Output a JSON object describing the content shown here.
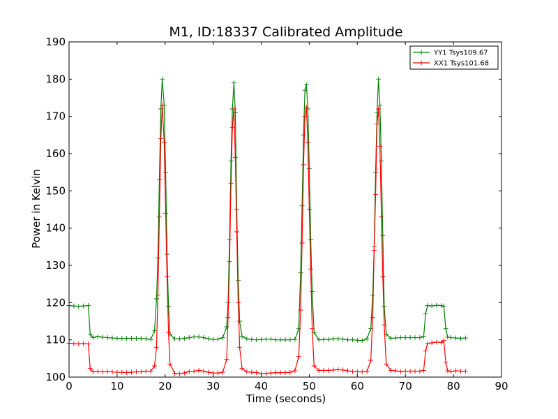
{
  "chart_data": {
    "type": "line",
    "title": "M1, ID:18337 Calibrated Amplitude",
    "xlabel": "Time (seconds)",
    "ylabel": "Power in Kelvin",
    "xlim": [
      0,
      90
    ],
    "ylim": [
      100,
      190
    ],
    "x_ticks": [
      "0",
      "10",
      "20",
      "30",
      "40",
      "50",
      "60",
      "70",
      "80",
      "90"
    ],
    "y_ticks": [
      "100",
      "110",
      "120",
      "130",
      "140",
      "150",
      "160",
      "170",
      "180",
      "190"
    ],
    "grid": false,
    "legend_position": "top-right",
    "marker": "+",
    "series": [
      {
        "name": "YY1 Tsys109.67",
        "color": "#008000",
        "points": [
          [
            0,
            119.2
          ],
          [
            1,
            119.1
          ],
          [
            2,
            119.0
          ],
          [
            3,
            119.1
          ],
          [
            4,
            119.2
          ],
          [
            4.4,
            111.5
          ],
          [
            5,
            110.6
          ],
          [
            6,
            110.9
          ],
          [
            7,
            110.7
          ],
          [
            8,
            110.6
          ],
          [
            9,
            110.5
          ],
          [
            10,
            110.4
          ],
          [
            11,
            110.4
          ],
          [
            12,
            110.4
          ],
          [
            13,
            110.4
          ],
          [
            14,
            110.4
          ],
          [
            15,
            110.4
          ],
          [
            16,
            110.3
          ],
          [
            17,
            110.1
          ],
          [
            17.8,
            112.5
          ],
          [
            18.2,
            121
          ],
          [
            18.5,
            132
          ],
          [
            18.8,
            153
          ],
          [
            19.1,
            172
          ],
          [
            19.4,
            180
          ],
          [
            19.8,
            173
          ],
          [
            20.1,
            155
          ],
          [
            20.4,
            133
          ],
          [
            20.7,
            119
          ],
          [
            21,
            111.5
          ],
          [
            22,
            110.3
          ],
          [
            23,
            110.3
          ],
          [
            24,
            110.4
          ],
          [
            25,
            110.6
          ],
          [
            26,
            110.8
          ],
          [
            27,
            110.8
          ],
          [
            28,
            110.6
          ],
          [
            29,
            110.3
          ],
          [
            30,
            110.1
          ],
          [
            31,
            110.2
          ],
          [
            32,
            110.6
          ],
          [
            32.8,
            113.5
          ],
          [
            33.1,
            120
          ],
          [
            33.4,
            137
          ],
          [
            33.7,
            158
          ],
          [
            34.0,
            172
          ],
          [
            34.3,
            179
          ],
          [
            34.6,
            171
          ],
          [
            34.9,
            145
          ],
          [
            35.2,
            126
          ],
          [
            35.5,
            115
          ],
          [
            36,
            110.9
          ],
          [
            37,
            110.3
          ],
          [
            38,
            110.1
          ],
          [
            39,
            110.0
          ],
          [
            40,
            110.1
          ],
          [
            41,
            110.2
          ],
          [
            42,
            110.2
          ],
          [
            43,
            110.0
          ],
          [
            44,
            110.0
          ],
          [
            45,
            110.0
          ],
          [
            46,
            110.0
          ],
          [
            47,
            110.1
          ],
          [
            47.8,
            113
          ],
          [
            48.2,
            128
          ],
          [
            48.5,
            146
          ],
          [
            48.8,
            165
          ],
          [
            49.1,
            177
          ],
          [
            49.4,
            178.5
          ],
          [
            49.7,
            172
          ],
          [
            50.0,
            156
          ],
          [
            50.3,
            137
          ],
          [
            50.6,
            123
          ],
          [
            51,
            112
          ],
          [
            52,
            110.0
          ],
          [
            53,
            110.1
          ],
          [
            54,
            110.1
          ],
          [
            55,
            110.3
          ],
          [
            56,
            110.3
          ],
          [
            57,
            110.2
          ],
          [
            58,
            110.0
          ],
          [
            59,
            110.0
          ],
          [
            60,
            109.9
          ],
          [
            61,
            109.8
          ],
          [
            62,
            110.3
          ],
          [
            62.8,
            113
          ],
          [
            63.2,
            122
          ],
          [
            63.5,
            135
          ],
          [
            63.8,
            155
          ],
          [
            64.1,
            171
          ],
          [
            64.4,
            180
          ],
          [
            64.7,
            173
          ],
          [
            65.0,
            158
          ],
          [
            65.3,
            138
          ],
          [
            65.6,
            119
          ],
          [
            66,
            111.5
          ],
          [
            67,
            110.4
          ],
          [
            68,
            110.5
          ],
          [
            69,
            110.6
          ],
          [
            70,
            110.6
          ],
          [
            71,
            110.6
          ],
          [
            72,
            110.6
          ],
          [
            73,
            110.6
          ],
          [
            73.8,
            110.9
          ],
          [
            74.2,
            117
          ],
          [
            74.6,
            119.2
          ],
          [
            75.5,
            119.1
          ],
          [
            76.5,
            119.3
          ],
          [
            77.5,
            119.2
          ],
          [
            78.0,
            119.0
          ],
          [
            78.4,
            113
          ],
          [
            78.8,
            110.7
          ],
          [
            79.5,
            110.6
          ],
          [
            80.5,
            110.5
          ],
          [
            81.5,
            110.4
          ],
          [
            82.5,
            110.5
          ]
        ]
      },
      {
        "name": "XX1 Tsys101.68",
        "color": "#ff0000",
        "points": [
          [
            0,
            109.1
          ],
          [
            1,
            109.0
          ],
          [
            2,
            108.9
          ],
          [
            3,
            109.0
          ],
          [
            4,
            108.9
          ],
          [
            4.4,
            102.3
          ],
          [
            5,
            101.4
          ],
          [
            6,
            101.5
          ],
          [
            7,
            101.4
          ],
          [
            8,
            101.5
          ],
          [
            9,
            101.4
          ],
          [
            10,
            101.3
          ],
          [
            11,
            101.3
          ],
          [
            12,
            101.2
          ],
          [
            13,
            101.3
          ],
          [
            14,
            101.4
          ],
          [
            15,
            101.4
          ],
          [
            16,
            101.6
          ],
          [
            17,
            101.6
          ],
          [
            17.8,
            103
          ],
          [
            18.2,
            108
          ],
          [
            18.5,
            122
          ],
          [
            18.8,
            143
          ],
          [
            19.1,
            164
          ],
          [
            19.4,
            173
          ],
          [
            19.8,
            163
          ],
          [
            20.1,
            144
          ],
          [
            20.4,
            127
          ],
          [
            20.7,
            112
          ],
          [
            21,
            103.5
          ],
          [
            22,
            101.0
          ],
          [
            23,
            100.9
          ],
          [
            24,
            101.1
          ],
          [
            25,
            101.5
          ],
          [
            26,
            101.6
          ],
          [
            27,
            101.8
          ],
          [
            28,
            101.6
          ],
          [
            29,
            101.3
          ],
          [
            30,
            101.1
          ],
          [
            31,
            101.1
          ],
          [
            32,
            101.3
          ],
          [
            32.8,
            104.8
          ],
          [
            33.1,
            116
          ],
          [
            33.4,
            131
          ],
          [
            33.7,
            152
          ],
          [
            34.0,
            167
          ],
          [
            34.3,
            172
          ],
          [
            34.6,
            159
          ],
          [
            34.9,
            139
          ],
          [
            35.2,
            120
          ],
          [
            35.5,
            108
          ],
          [
            36,
            102.3
          ],
          [
            37,
            101.4
          ],
          [
            38,
            101.3
          ],
          [
            39,
            101.2
          ],
          [
            40,
            101.0
          ],
          [
            41,
            101.0
          ],
          [
            42,
            101.1
          ],
          [
            43,
            101.2
          ],
          [
            44,
            101.2
          ],
          [
            45,
            101.2
          ],
          [
            46,
            101.3
          ],
          [
            47,
            101.7
          ],
          [
            47.8,
            105.5
          ],
          [
            48.2,
            118
          ],
          [
            48.5,
            136
          ],
          [
            48.8,
            157
          ],
          [
            49.1,
            170
          ],
          [
            49.4,
            172.5
          ],
          [
            49.7,
            163
          ],
          [
            50.0,
            145
          ],
          [
            50.3,
            129
          ],
          [
            50.6,
            113
          ],
          [
            51,
            103
          ],
          [
            52,
            101.8
          ],
          [
            53,
            101.8
          ],
          [
            54,
            101.8
          ],
          [
            55,
            101.9
          ],
          [
            56,
            102.0
          ],
          [
            57,
            101.9
          ],
          [
            58,
            101.7
          ],
          [
            59,
            101.5
          ],
          [
            60,
            101.4
          ],
          [
            61,
            101.4
          ],
          [
            62,
            101.5
          ],
          [
            62.8,
            104.5
          ],
          [
            63.2,
            116
          ],
          [
            63.5,
            134
          ],
          [
            63.8,
            149
          ],
          [
            64.1,
            168
          ],
          [
            64.4,
            172
          ],
          [
            64.7,
            162
          ],
          [
            65.0,
            143
          ],
          [
            65.3,
            127
          ],
          [
            65.6,
            114
          ],
          [
            66,
            103.5
          ],
          [
            67,
            101.8
          ],
          [
            68,
            101.7
          ],
          [
            69,
            101.5
          ],
          [
            70,
            101.6
          ],
          [
            71,
            101.6
          ],
          [
            72,
            101.6
          ],
          [
            73,
            101.6
          ],
          [
            73.8,
            101.8
          ],
          [
            74.2,
            107
          ],
          [
            74.6,
            109.0
          ],
          [
            75.5,
            109.2
          ],
          [
            76.5,
            109.4
          ],
          [
            77.5,
            109.3
          ],
          [
            78.0,
            109.8
          ],
          [
            78.4,
            104
          ],
          [
            78.8,
            101.7
          ],
          [
            79.5,
            101.5
          ],
          [
            80.5,
            101.7
          ],
          [
            81.5,
            101.6
          ],
          [
            82.5,
            101.6
          ]
        ]
      }
    ]
  }
}
